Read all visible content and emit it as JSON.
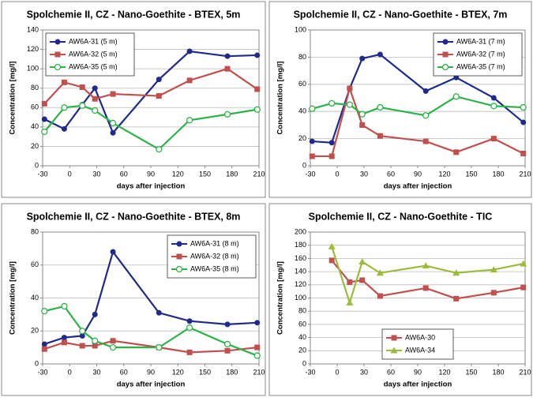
{
  "chart_data": [
    {
      "type": "line",
      "title": "Spolchemie II, CZ - Nano-Goethite - BTEX, 5m",
      "x_label": "days after injection",
      "y_label": "Concentration [mg/l]",
      "xlim": [
        -30,
        210
      ],
      "xticks": [
        -30,
        0,
        30,
        60,
        90,
        120,
        150,
        180,
        210
      ],
      "ylim": [
        0,
        140
      ],
      "yticks": [
        0,
        20,
        40,
        60,
        80,
        100,
        120,
        140
      ],
      "grid": true,
      "legend": "upper left",
      "series": [
        {
          "name": "AW6A-31 (5 m)",
          "color": "#1f2a8c",
          "marker": "circle",
          "x": [
            -28,
            -6,
            14,
            28,
            48,
            99,
            133,
            175,
            208
          ],
          "values": [
            48,
            38,
            63,
            80,
            34,
            89,
            118,
            113,
            114
          ]
        },
        {
          "name": "AW6A-32 (5 m)",
          "color": "#c0504d",
          "marker": "square",
          "x": [
            -28,
            -6,
            14,
            28,
            48,
            99,
            133,
            175,
            208
          ],
          "values": [
            64,
            86,
            81,
            69,
            74,
            72,
            88,
            100,
            79
          ]
        },
        {
          "name": "AW6A-35 (5 m)",
          "color": "#2db34a",
          "marker": "open-circle",
          "x": [
            -28,
            -6,
            14,
            28,
            48,
            99,
            133,
            175,
            208
          ],
          "values": [
            35,
            60,
            62,
            57,
            44,
            17,
            47,
            53,
            58
          ]
        }
      ]
    },
    {
      "type": "line",
      "title": "Spolchemie II, CZ - Nano-Goethite - BTEX, 7m",
      "x_label": "days after injection",
      "y_label": "Concentration [mg/l]",
      "xlim": [
        -30,
        210
      ],
      "xticks": [
        -30,
        0,
        30,
        60,
        90,
        120,
        150,
        180,
        210
      ],
      "ylim": [
        0,
        100
      ],
      "yticks": [
        0,
        20,
        40,
        60,
        80,
        100
      ],
      "grid": true,
      "legend": "upper right",
      "series": [
        {
          "name": "AW6A-31 (7 m)",
          "color": "#1f2a8c",
          "marker": "circle",
          "x": [
            -28,
            -6,
            14,
            28,
            48,
            99,
            133,
            175,
            208
          ],
          "values": [
            18,
            17,
            57,
            79,
            82,
            55,
            65,
            50,
            32
          ]
        },
        {
          "name": "AW6A-32 (7 m)",
          "color": "#c0504d",
          "marker": "square",
          "x": [
            -28,
            -6,
            14,
            28,
            48,
            99,
            133,
            175,
            208
          ],
          "values": [
            7,
            7,
            57,
            30,
            22,
            18,
            10,
            20,
            9
          ]
        },
        {
          "name": "AW6A-35 (7 m)",
          "color": "#2db34a",
          "marker": "open-circle",
          "x": [
            -28,
            -6,
            14,
            28,
            48,
            99,
            133,
            175,
            208
          ],
          "values": [
            42,
            46,
            45,
            38,
            43,
            37,
            51,
            44,
            43
          ]
        }
      ]
    },
    {
      "type": "line",
      "title": "Spolchemie II, CZ - Nano-Goethite - BTEX, 8m",
      "x_label": "days after injection",
      "y_label": "Concentration [mg/l]",
      "xlim": [
        -30,
        210
      ],
      "xticks": [
        -30,
        0,
        30,
        60,
        90,
        120,
        150,
        180,
        210
      ],
      "ylim": [
        0,
        80
      ],
      "yticks": [
        0,
        20,
        40,
        60,
        80
      ],
      "grid": true,
      "legend": "upper right",
      "series": [
        {
          "name": "AW6A-31 (8 m)",
          "color": "#1f2a8c",
          "marker": "circle",
          "x": [
            -28,
            -6,
            14,
            28,
            48,
            99,
            133,
            175,
            208
          ],
          "values": [
            12,
            16,
            17,
            30,
            68,
            31,
            26,
            24,
            25
          ]
        },
        {
          "name": "AW6A-32 (8 m)",
          "color": "#c0504d",
          "marker": "square",
          "x": [
            -28,
            -6,
            14,
            28,
            48,
            99,
            133,
            175,
            208
          ],
          "values": [
            9,
            13,
            11,
            11,
            14,
            10,
            7,
            8,
            10
          ]
        },
        {
          "name": "AW6A-35 (8 m)",
          "color": "#2db34a",
          "marker": "open-circle",
          "x": [
            -28,
            -6,
            14,
            28,
            48,
            99,
            133,
            175,
            208
          ],
          "values": [
            32,
            35,
            20,
            14,
            10,
            10,
            22,
            12,
            5
          ]
        }
      ]
    },
    {
      "type": "line",
      "title": "Spolchemie II, CZ - Nano-Goethite - TIC",
      "x_label": "days after injection",
      "y_label": "Concentration [mg/l]",
      "xlim": [
        -30,
        210
      ],
      "xticks": [
        -30,
        0,
        30,
        60,
        90,
        120,
        150,
        180,
        210
      ],
      "ylim": [
        0,
        200
      ],
      "yticks": [
        0,
        20,
        40,
        60,
        80,
        100,
        120,
        140,
        160,
        180,
        200
      ],
      "grid": true,
      "legend": "lower center",
      "series": [
        {
          "name": "AW6A-30",
          "color": "#c0504d",
          "marker": "square",
          "x": [
            -6,
            14,
            28,
            48,
            99,
            133,
            175,
            208
          ],
          "values": [
            157,
            124,
            127,
            103,
            115,
            99,
            108,
            116
          ]
        },
        {
          "name": "AW6A-34",
          "color": "#9bbb3a",
          "marker": "triangle",
          "x": [
            -6,
            14,
            28,
            48,
            99,
            133,
            175,
            208
          ],
          "values": [
            178,
            93,
            155,
            138,
            149,
            138,
            143,
            152
          ]
        }
      ]
    }
  ]
}
